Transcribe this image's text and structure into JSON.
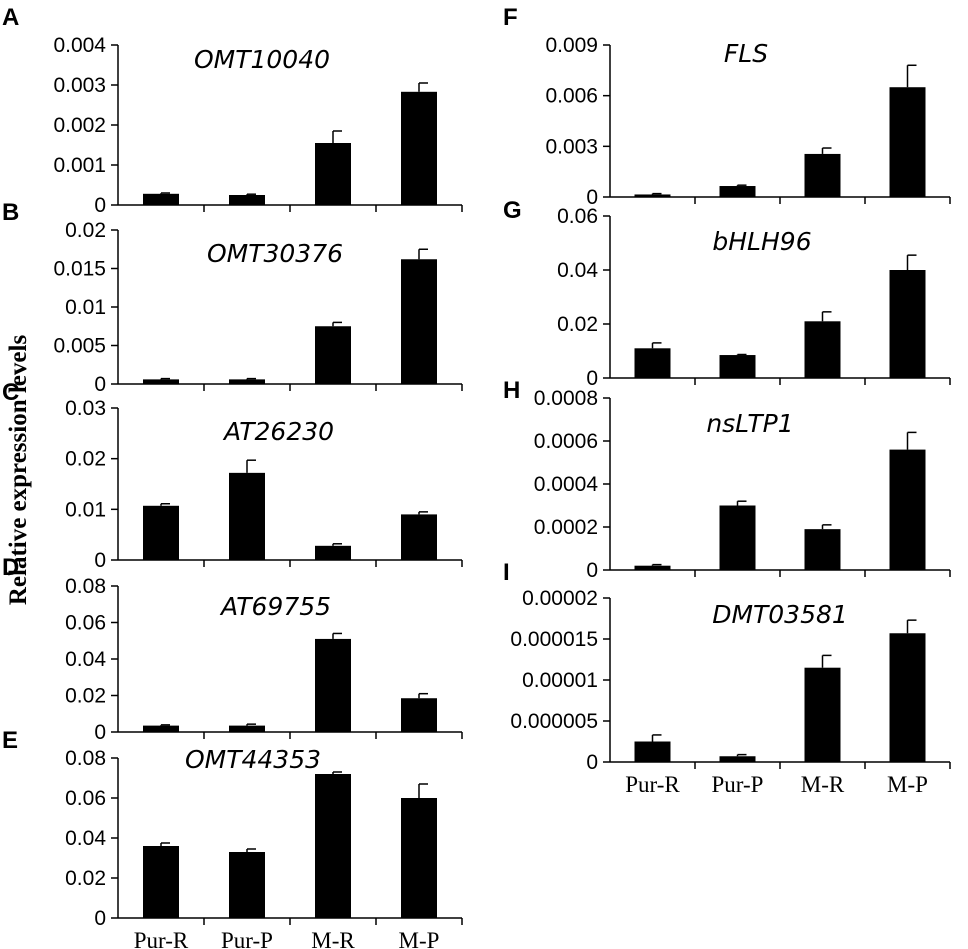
{
  "figure": {
    "ylabel": "Relative expression levels"
  },
  "chart_data": [
    {
      "panel": "A",
      "type": "bar",
      "title": "OMT10040",
      "categories": [
        "Pur-R",
        "Pur-P",
        "M-R",
        "M-P"
      ],
      "values": [
        0.00028,
        0.00025,
        0.00155,
        0.00283
      ],
      "errors": [
        2e-05,
        2e-05,
        0.0003,
        0.00022
      ],
      "ylim": [
        0,
        0.004
      ],
      "yticks": [
        "0",
        "0.001",
        "0.002",
        "0.003",
        "0.004"
      ]
    },
    {
      "panel": "B",
      "type": "bar",
      "title": "OMT30376",
      "categories": [
        "Pur-R",
        "Pur-P",
        "M-R",
        "M-P"
      ],
      "values": [
        0.0006,
        0.0006,
        0.0075,
        0.0162
      ],
      "errors": [
        0.0001,
        0.0001,
        0.0005,
        0.0013
      ],
      "ylim": [
        0,
        0.02
      ],
      "yticks": [
        "0",
        "0.005",
        "0.01",
        "0.015",
        "0.02"
      ]
    },
    {
      "panel": "C",
      "type": "bar",
      "title": "AT26230",
      "categories": [
        "Pur-R",
        "Pur-P",
        "M-R",
        "M-P"
      ],
      "values": [
        0.0107,
        0.0172,
        0.0028,
        0.009
      ],
      "errors": [
        0.0004,
        0.0025,
        0.0004,
        0.0005
      ],
      "ylim": [
        0,
        0.03
      ],
      "yticks": [
        "0",
        "0.01",
        "0.02",
        "0.03"
      ]
    },
    {
      "panel": "D",
      "type": "bar",
      "title": "AT69755",
      "categories": [
        "Pur-R",
        "Pur-P",
        "M-R",
        "M-P"
      ],
      "values": [
        0.0035,
        0.0035,
        0.051,
        0.0185
      ],
      "errors": [
        0.0004,
        0.0008,
        0.003,
        0.0025
      ],
      "ylim": [
        0,
        0.08
      ],
      "yticks": [
        "0",
        "0.02",
        "0.04",
        "0.06",
        "0.08"
      ]
    },
    {
      "panel": "E",
      "type": "bar",
      "title": "OMT44353",
      "categories": [
        "Pur-R",
        "Pur-P",
        "M-R",
        "M-P"
      ],
      "values": [
        0.036,
        0.033,
        0.072,
        0.06
      ],
      "errors": [
        0.0015,
        0.0015,
        0.001,
        0.007
      ],
      "ylim": [
        0,
        0.08
      ],
      "yticks": [
        "0",
        "0.02",
        "0.04",
        "0.06",
        "0.08"
      ]
    },
    {
      "panel": "F",
      "type": "bar",
      "title": "FLS",
      "categories": [
        "Pur-R",
        "Pur-P",
        "M-R",
        "M-P"
      ],
      "values": [
        0.00015,
        0.00065,
        0.00255,
        0.0065
      ],
      "errors": [
        5e-05,
        5e-05,
        0.00035,
        0.0013
      ],
      "ylim": [
        0,
        0.009
      ],
      "yticks": [
        "0",
        "0.003",
        "0.006",
        "0.009"
      ]
    },
    {
      "panel": "G",
      "type": "bar",
      "title": "bHLH96",
      "categories": [
        "Pur-R",
        "Pur-P",
        "M-R",
        "M-P"
      ],
      "values": [
        0.011,
        0.0085,
        0.021,
        0.04
      ],
      "errors": [
        0.002,
        0.0002,
        0.0035,
        0.0055
      ],
      "ylim": [
        0,
        0.06
      ],
      "yticks": [
        "0",
        "0.02",
        "0.04",
        "0.06"
      ]
    },
    {
      "panel": "H",
      "type": "bar",
      "title": "nsLTP1",
      "categories": [
        "Pur-R",
        "Pur-P",
        "M-R",
        "M-P"
      ],
      "values": [
        2e-05,
        0.0003,
        0.00019,
        0.00056
      ],
      "errors": [
        5e-06,
        2e-05,
        2e-05,
        8e-05
      ],
      "ylim": [
        0,
        0.0008
      ],
      "yticks": [
        "0",
        "0.0002",
        "0.0004",
        "0.0006",
        "0.0008"
      ]
    },
    {
      "panel": "I",
      "type": "bar",
      "title": "DMT03581",
      "categories": [
        "Pur-R",
        "Pur-P",
        "M-R",
        "M-P"
      ],
      "values": [
        2.5e-06,
        7e-07,
        1.15e-05,
        1.57e-05
      ],
      "errors": [
        8e-07,
        2e-07,
        1.5e-06,
        1.6e-06
      ],
      "ylim": [
        0,
        2e-05
      ],
      "yticks": [
        "0",
        "0.000005",
        "0.00001",
        "0.000015",
        "0.00002"
      ]
    }
  ]
}
